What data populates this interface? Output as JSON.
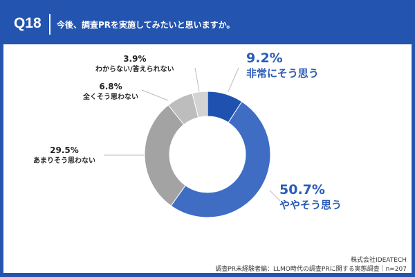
{
  "header": {
    "question_no": "Q18",
    "title": "今後、調査PRを実施してみたいと思いますか。"
  },
  "chart_data": {
    "type": "pie",
    "donut": true,
    "title": "今後、調査PRを実施してみたいと思いますか。",
    "categories": [
      "非常にそう思う",
      "ややそう思う",
      "あまりそう思わない",
      "全くそう思わない",
      "わからない/答えられない"
    ],
    "values": [
      9.2,
      50.7,
      29.5,
      6.8,
      3.9
    ],
    "labels": [
      "9.2%",
      "50.7%",
      "29.5%",
      "6.8%",
      "3.9%"
    ],
    "colors": [
      "#1f52b0",
      "#3f6dc4",
      "#a3a3a3",
      "#bdbdbd",
      "#d3d3d3"
    ],
    "n": 207
  },
  "footer": {
    "company": "株式会社IDEATECH",
    "source": "調査PR未経験者編：LLMO時代の調査PRに関する実態調査｜n=207"
  }
}
